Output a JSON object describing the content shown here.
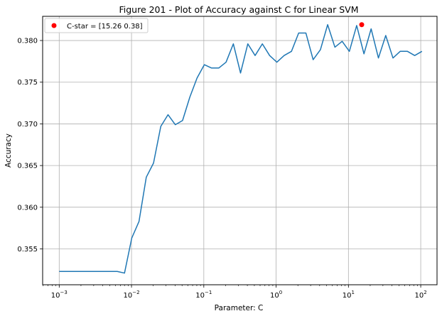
{
  "chart_data": {
    "type": "line",
    "title": "Figure 201 - Plot of Accuracy against C for Linear SVM",
    "xlabel": "Parameter: C",
    "ylabel": "Accuracy",
    "xscale": "log",
    "xlim": [
      0.00059,
      168
    ],
    "ylim": [
      0.3507,
      0.3829
    ],
    "grid": true,
    "legend_position": "top-left",
    "x_ticks": [
      {
        "value": 0.001,
        "base": "10",
        "exp": "−3"
      },
      {
        "value": 0.01,
        "base": "10",
        "exp": "−2"
      },
      {
        "value": 0.1,
        "base": "10",
        "exp": "−1"
      },
      {
        "value": 1,
        "base": "10",
        "exp": "0"
      },
      {
        "value": 10,
        "base": "10",
        "exp": "1"
      },
      {
        "value": 100,
        "base": "10",
        "exp": "2"
      }
    ],
    "y_ticks": [
      {
        "value": 0.355,
        "label": "0.355"
      },
      {
        "value": 0.36,
        "label": "0.360"
      },
      {
        "value": 0.365,
        "label": "0.365"
      },
      {
        "value": 0.37,
        "label": "0.370"
      },
      {
        "value": 0.375,
        "label": "0.375"
      },
      {
        "value": 0.38,
        "label": "0.380"
      }
    ],
    "series": [
      {
        "color": "#1f77b4",
        "points": [
          [
            0.001,
            0.3523
          ],
          [
            0.00126,
            0.3523
          ],
          [
            0.00159,
            0.3523
          ],
          [
            0.002,
            0.3523
          ],
          [
            0.00252,
            0.3523
          ],
          [
            0.00318,
            0.3523
          ],
          [
            0.004,
            0.3523
          ],
          [
            0.00504,
            0.3523
          ],
          [
            0.00635,
            0.3523
          ],
          [
            0.008,
            0.3521
          ],
          [
            0.01008,
            0.3563
          ],
          [
            0.0127,
            0.3583
          ],
          [
            0.016,
            0.3636
          ],
          [
            0.02016,
            0.3653
          ],
          [
            0.0254,
            0.3697
          ],
          [
            0.032,
            0.3711
          ],
          [
            0.0403,
            0.3699
          ],
          [
            0.0508,
            0.3704
          ],
          [
            0.064,
            0.3732
          ],
          [
            0.0806,
            0.3755
          ],
          [
            0.1016,
            0.3771
          ],
          [
            0.128,
            0.3767
          ],
          [
            0.161,
            0.3767
          ],
          [
            0.203,
            0.3774
          ],
          [
            0.256,
            0.3796
          ],
          [
            0.322,
            0.3761
          ],
          [
            0.406,
            0.3796
          ],
          [
            0.512,
            0.3782
          ],
          [
            0.645,
            0.3796
          ],
          [
            0.813,
            0.3782
          ],
          [
            1.024,
            0.3774
          ],
          [
            1.29,
            0.3782
          ],
          [
            1.63,
            0.3787
          ],
          [
            2.05,
            0.3809
          ],
          [
            2.58,
            0.3809
          ],
          [
            3.25,
            0.3777
          ],
          [
            4.1,
            0.3789
          ],
          [
            5.16,
            0.3819
          ],
          [
            6.5,
            0.3792
          ],
          [
            8.19,
            0.3799
          ],
          [
            10.3,
            0.3787
          ],
          [
            13.0,
            0.3818
          ],
          [
            16.4,
            0.3784
          ],
          [
            20.6,
            0.3814
          ],
          [
            26.0,
            0.3779
          ],
          [
            32.8,
            0.3806
          ],
          [
            41.3,
            0.3779
          ],
          [
            52.0,
            0.3787
          ],
          [
            65.5,
            0.3787
          ],
          [
            82.5,
            0.3782
          ],
          [
            104,
            0.3787
          ]
        ]
      }
    ],
    "marker": {
      "label": "C-star = [15.26  0.38]",
      "x": 15.26,
      "y": 0.3819,
      "color": "#ff0000"
    }
  }
}
